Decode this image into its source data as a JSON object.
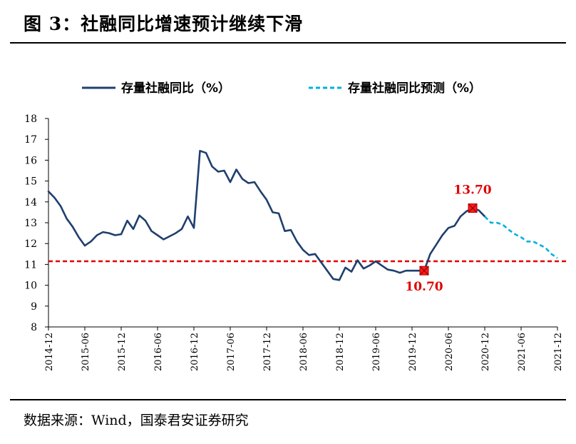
{
  "figure": {
    "title": "图 3：社融同比增速预计继续下滑",
    "source": "数据来源：Wind，国泰君安证券研究"
  },
  "chart_data": {
    "type": "line",
    "ylim": [
      8,
      18
    ],
    "yticks": [
      8,
      9,
      10,
      11,
      12,
      13,
      14,
      15,
      16,
      17,
      18
    ],
    "xticks": [
      "2014-12",
      "2015-06",
      "2015-12",
      "2016-06",
      "2016-12",
      "2017-06",
      "2017-12",
      "2018-06",
      "2018-12",
      "2019-06",
      "2019-12",
      "2020-06",
      "2020-12",
      "2021-06",
      "2021-12"
    ],
    "grid": false,
    "legend_position": "top",
    "reference_line": {
      "y": 11.15,
      "color": "#e00000",
      "style": "dashed"
    },
    "series": [
      {
        "name": "存量社融同比（%）",
        "style": "solid",
        "color": "#1f3f6e",
        "points": [
          [
            "2014-12",
            14.5
          ],
          [
            "2015-01",
            14.2
          ],
          [
            "2015-02",
            13.8
          ],
          [
            "2015-03",
            13.2
          ],
          [
            "2015-04",
            12.8
          ],
          [
            "2015-05",
            12.3
          ],
          [
            "2015-06",
            11.9
          ],
          [
            "2015-07",
            12.1
          ],
          [
            "2015-08",
            12.4
          ],
          [
            "2015-09",
            12.55
          ],
          [
            "2015-10",
            12.5
          ],
          [
            "2015-11",
            12.4
          ],
          [
            "2015-12",
            12.45
          ],
          [
            "2016-01",
            13.1
          ],
          [
            "2016-02",
            12.7
          ],
          [
            "2016-03",
            13.35
          ],
          [
            "2016-04",
            13.1
          ],
          [
            "2016-05",
            12.6
          ],
          [
            "2016-06",
            12.4
          ],
          [
            "2016-07",
            12.2
          ],
          [
            "2016-08",
            12.35
          ],
          [
            "2016-09",
            12.5
          ],
          [
            "2016-10",
            12.7
          ],
          [
            "2016-11",
            13.3
          ],
          [
            "2016-12",
            12.75
          ],
          [
            "2017-01",
            16.45
          ],
          [
            "2017-02",
            16.35
          ],
          [
            "2017-03",
            15.7
          ],
          [
            "2017-04",
            15.45
          ],
          [
            "2017-05",
            15.5
          ],
          [
            "2017-06",
            14.95
          ],
          [
            "2017-07",
            15.55
          ],
          [
            "2017-08",
            15.1
          ],
          [
            "2017-09",
            14.9
          ],
          [
            "2017-10",
            14.95
          ],
          [
            "2017-11",
            14.5
          ],
          [
            "2017-12",
            14.1
          ],
          [
            "2018-01",
            13.5
          ],
          [
            "2018-02",
            13.45
          ],
          [
            "2018-03",
            12.6
          ],
          [
            "2018-04",
            12.65
          ],
          [
            "2018-05",
            12.1
          ],
          [
            "2018-06",
            11.7
          ],
          [
            "2018-07",
            11.45
          ],
          [
            "2018-08",
            11.5
          ],
          [
            "2018-09",
            11.1
          ],
          [
            "2018-10",
            10.7
          ],
          [
            "2018-11",
            10.3
          ],
          [
            "2018-12",
            10.25
          ],
          [
            "2019-01",
            10.85
          ],
          [
            "2019-02",
            10.65
          ],
          [
            "2019-03",
            11.2
          ],
          [
            "2019-04",
            10.8
          ],
          [
            "2019-05",
            10.95
          ],
          [
            "2019-06",
            11.15
          ],
          [
            "2019-07",
            10.95
          ],
          [
            "2019-08",
            10.75
          ],
          [
            "2019-09",
            10.7
          ],
          [
            "2019-10",
            10.6
          ],
          [
            "2019-11",
            10.7
          ],
          [
            "2019-12",
            10.7
          ],
          [
            "2020-01",
            10.7
          ],
          [
            "2020-02",
            10.7
          ],
          [
            "2020-03",
            11.5
          ],
          [
            "2020-04",
            11.95
          ],
          [
            "2020-05",
            12.4
          ],
          [
            "2020-06",
            12.75
          ],
          [
            "2020-07",
            12.85
          ],
          [
            "2020-08",
            13.3
          ],
          [
            "2020-09",
            13.55
          ],
          [
            "2020-10",
            13.7
          ],
          [
            "2020-11",
            13.6
          ],
          [
            "2020-12",
            13.3
          ]
        ]
      },
      {
        "name": "存量社融同比预测（%）",
        "style": "dashed",
        "color": "#00b0e0",
        "points": [
          [
            "2020-12",
            13.3
          ],
          [
            "2021-01",
            13.0
          ],
          [
            "2021-02",
            13.0
          ],
          [
            "2021-03",
            12.9
          ],
          [
            "2021-04",
            12.65
          ],
          [
            "2021-05",
            12.45
          ],
          [
            "2021-06",
            12.3
          ],
          [
            "2021-07",
            12.1
          ],
          [
            "2021-08",
            12.1
          ],
          [
            "2021-09",
            11.95
          ],
          [
            "2021-10",
            11.8
          ],
          [
            "2021-11",
            11.5
          ],
          [
            "2021-12",
            11.3
          ]
        ]
      }
    ],
    "highlighted_points": [
      {
        "x": "2020-02",
        "y": 10.7,
        "label": "10.70",
        "label_position": "below"
      },
      {
        "x": "2020-10",
        "y": 13.7,
        "label": "13.70",
        "label_position": "above"
      }
    ]
  }
}
